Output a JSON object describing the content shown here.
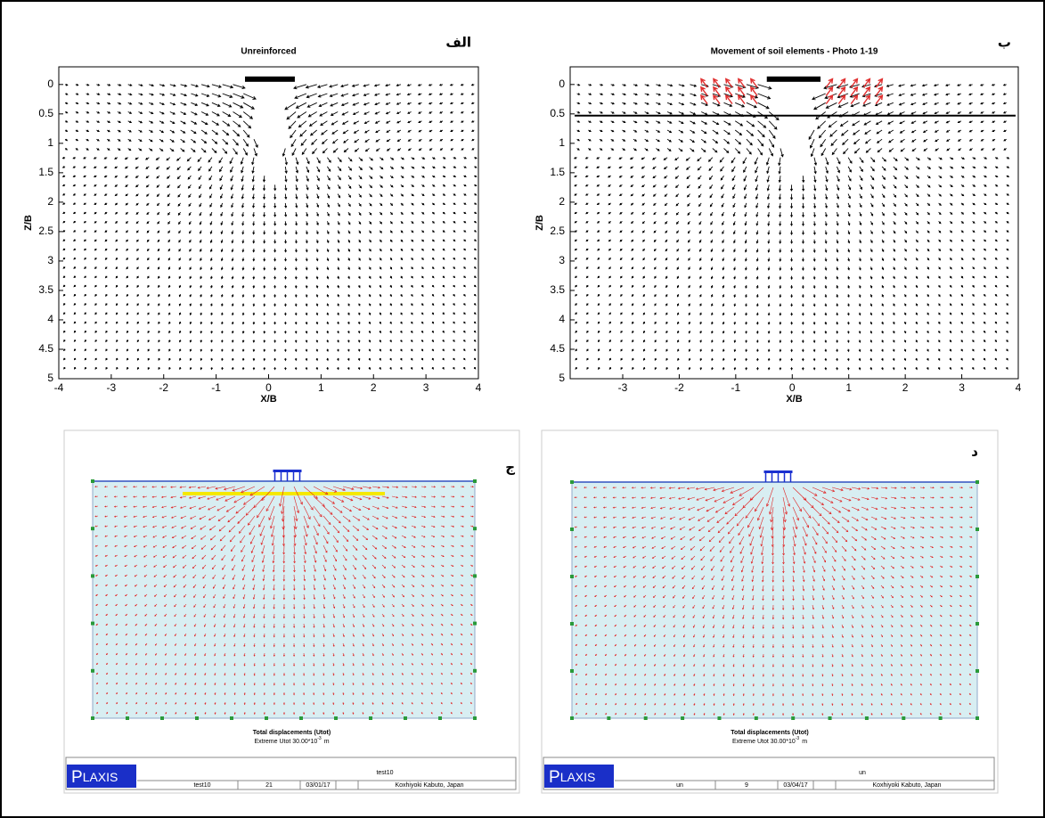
{
  "chart_data": [
    {
      "type": "quiver",
      "title": "Unreinforced",
      "panel_label": "الف",
      "xlabel": "X/B",
      "ylabel": "Z/B",
      "xlim": [
        -4,
        4
      ],
      "ylim": [
        -0.3,
        5
      ],
      "y_inverted": true,
      "xticks": [
        -4,
        -3,
        -2,
        -1,
        0,
        1,
        2,
        3,
        4
      ],
      "yticks": [
        0,
        0.5,
        1,
        1.5,
        2,
        2.5,
        3,
        3.5,
        4,
        4.5,
        5
      ],
      "footing": [
        -0.45,
        0.5
      ],
      "color": "#000000"
    },
    {
      "type": "quiver",
      "title": "Movement of soil elements - Photo 1-19",
      "panel_label": "ب",
      "xlabel": "X/B",
      "ylabel": "Z/B",
      "xlim": [
        -3.93,
        4
      ],
      "ylim": [
        -0.3,
        5
      ],
      "y_inverted": true,
      "xticks": [
        -3,
        -2,
        -1,
        0,
        1,
        2,
        3,
        4
      ],
      "yticks": [
        0,
        0.5,
        1,
        1.5,
        2,
        2.5,
        3,
        3.5,
        4,
        4.5,
        5
      ],
      "footing": [
        -0.45,
        0.5
      ],
      "reinforcement_depth": 0.53,
      "color": "#000000",
      "highlight_color": "#e03030"
    }
  ],
  "plaxis_panels": [
    {
      "panel_label": "ج",
      "caption": "Total displacements (Utot)",
      "extreme_prefix": "Extreme Utot 30.00*10",
      "extreme_exp": "-3",
      "extreme_unit": "m",
      "logo_initial": "P",
      "logo_rest": "LAXIS",
      "project": "test10",
      "name": "test10",
      "step": "21",
      "date": "03/01/17",
      "user": "Koxhiyoki Kabuto, Japan"
    },
    {
      "panel_label": "د",
      "caption": "Total displacements (Utot)",
      "extreme_prefix": "Extreme Utot 30.00*10",
      "extreme_exp": "-3",
      "extreme_unit": "m",
      "logo_initial": "P",
      "logo_rest": "LAXIS",
      "project": "un",
      "name": "un",
      "step": "9",
      "date": "03/04/17",
      "user": "Koxhiyoki Kabuto, Japan"
    }
  ]
}
